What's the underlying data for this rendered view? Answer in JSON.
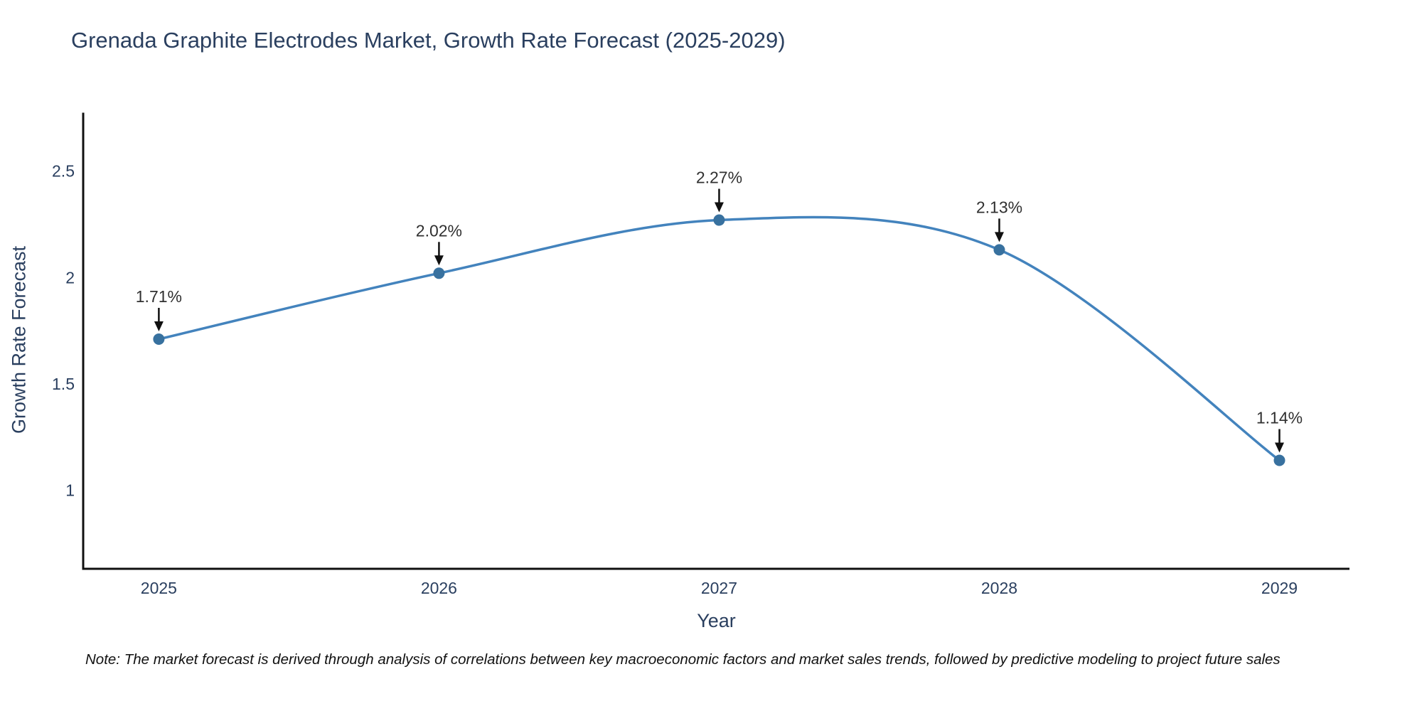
{
  "chart_data": {
    "type": "line",
    "title": "Grenada Graphite Electrodes Market, Growth Rate Forecast (2025-2029)",
    "xlabel": "Year",
    "ylabel": "Growth Rate Forecast",
    "x": [
      2025,
      2026,
      2027,
      2028,
      2029
    ],
    "series": [
      {
        "name": "Growth Rate Forecast",
        "values": [
          1.71,
          2.02,
          2.27,
          2.13,
          1.14
        ],
        "point_labels": [
          "1.71%",
          "2.02%",
          "2.27%",
          "2.13%",
          "1.14%"
        ]
      }
    ],
    "x_ticks": [
      "2025",
      "2026",
      "2027",
      "2028",
      "2029"
    ],
    "y_ticks": [
      1,
      1.5,
      2,
      2.5
    ],
    "x_range": [
      2024.73,
      2029.25
    ],
    "y_range": [
      0.63,
      2.77
    ],
    "line_shape": "spline",
    "grid": false,
    "legend_position": "none",
    "colors": {
      "line": "#4383bd",
      "marker": "#38719f",
      "axis": "#101010",
      "tick_text": "#2a3f5f",
      "annotation_text": "#303030",
      "arrow": "#101010",
      "background": "#ffffff"
    }
  },
  "note": "Note: The market forecast is derived through analysis of correlations between key macroeconomic factors and market sales trends, followed by predictive modeling to project future sales"
}
